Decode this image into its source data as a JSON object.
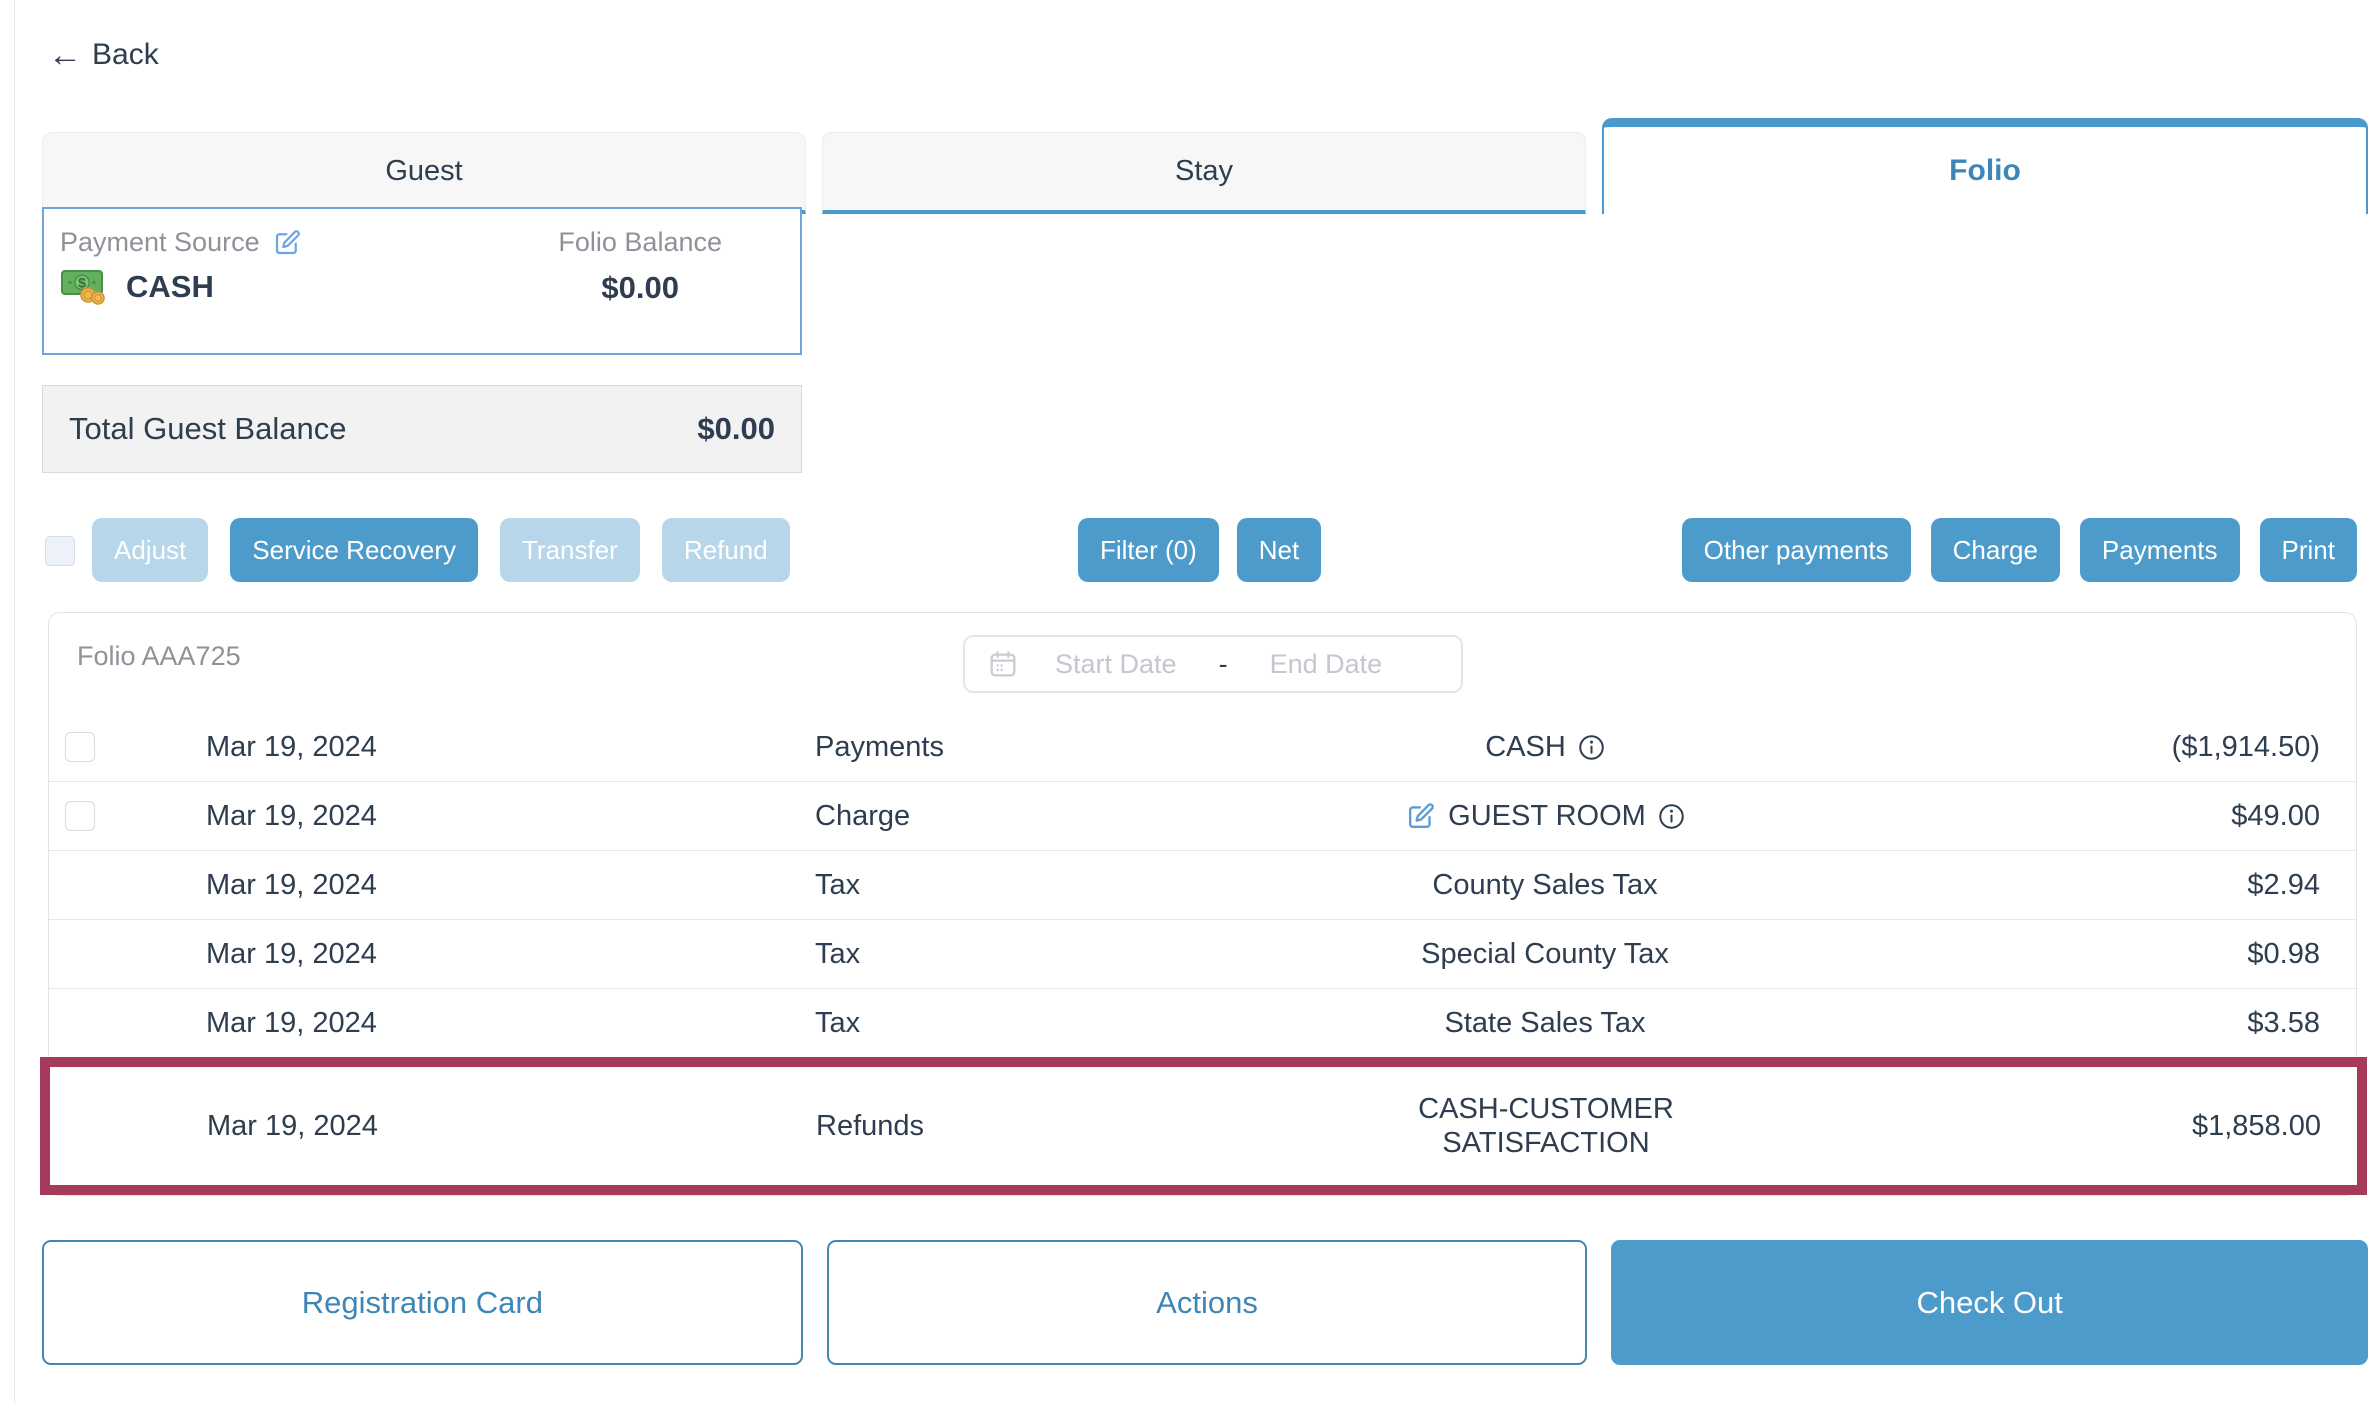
{
  "colors": {
    "accent_blue": "#4d9bca",
    "disabled_blue": "#b7d6ea",
    "highlight_maroon": "#a63a5a",
    "tab_active_text": "#3d87b8",
    "text_dark": "#2e3d4f",
    "text_gray": "#8e9299"
  },
  "back": {
    "label": "Back"
  },
  "tabs": [
    {
      "label": "Guest",
      "active": false
    },
    {
      "label": "Stay",
      "active": false
    },
    {
      "label": "Folio",
      "active": true
    }
  ],
  "payment_card": {
    "label": "Payment Source",
    "method": "CASH",
    "balance_label": "Folio Balance",
    "balance_value": "$0.00"
  },
  "total_balance": {
    "label": "Total Guest Balance",
    "value": "$0.00"
  },
  "toolbar": {
    "left": [
      {
        "label": "Adjust",
        "enabled": false
      },
      {
        "label": "Service Recovery",
        "enabled": true
      },
      {
        "label": "Transfer",
        "enabled": false
      },
      {
        "label": "Refund",
        "enabled": false
      }
    ],
    "middle": [
      {
        "label": "Filter (0)",
        "enabled": true
      },
      {
        "label": "Net",
        "enabled": true
      }
    ],
    "right": [
      {
        "label": "Other payments",
        "enabled": true
      },
      {
        "label": "Charge",
        "enabled": true
      },
      {
        "label": "Payments",
        "enabled": true
      },
      {
        "label": "Print",
        "enabled": true
      }
    ]
  },
  "folio": {
    "title": "Folio AAA725",
    "date_filter": {
      "start_placeholder": "Start Date",
      "separator": "-",
      "end_placeholder": "End Date"
    },
    "rows": [
      {
        "checkbox": true,
        "date": "Mar 19, 2024",
        "type": "Payments",
        "description": "CASH",
        "info_icon": true,
        "edit_icon": false,
        "amount": "($1,914.50)",
        "highlighted": false
      },
      {
        "checkbox": true,
        "date": "Mar 19, 2024",
        "type": "Charge",
        "description": "GUEST ROOM",
        "info_icon": true,
        "edit_icon": true,
        "amount": "$49.00",
        "highlighted": false
      },
      {
        "checkbox": false,
        "date": "Mar 19, 2024",
        "type": "Tax",
        "description": "County Sales Tax",
        "info_icon": false,
        "edit_icon": false,
        "amount": "$2.94",
        "highlighted": false
      },
      {
        "checkbox": false,
        "date": "Mar 19, 2024",
        "type": "Tax",
        "description": "Special County Tax",
        "info_icon": false,
        "edit_icon": false,
        "amount": "$0.98",
        "highlighted": false
      },
      {
        "checkbox": false,
        "date": "Mar 19, 2024",
        "type": "Tax",
        "description": "State Sales Tax",
        "info_icon": false,
        "edit_icon": false,
        "amount": "$3.58",
        "highlighted": false
      },
      {
        "checkbox": false,
        "date": "Mar 19, 2024",
        "type": "Refunds",
        "description": "CASH-CUSTOMER SATISFACTION",
        "info_icon": false,
        "edit_icon": false,
        "amount": "$1,858.00",
        "highlighted": true
      }
    ]
  },
  "footer": [
    {
      "label": "Registration Card",
      "style": "outline"
    },
    {
      "label": "Actions",
      "style": "outline"
    },
    {
      "label": "Check Out",
      "style": "filled"
    }
  ]
}
